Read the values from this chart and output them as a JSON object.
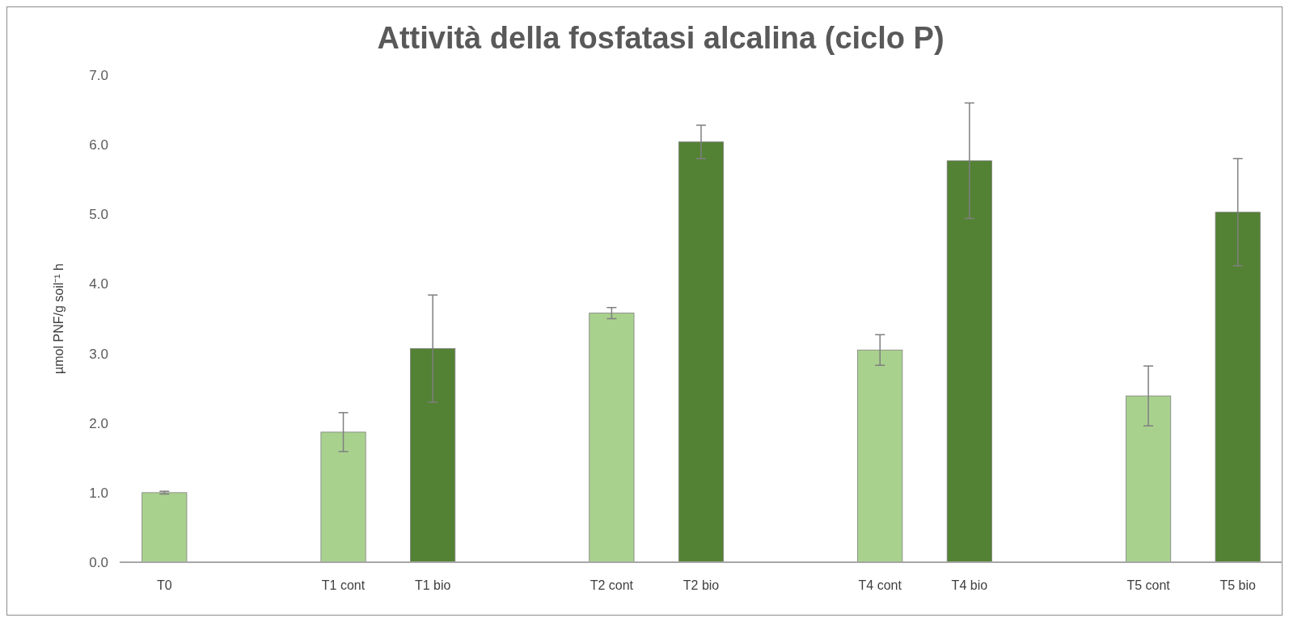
{
  "chart_data": {
    "type": "bar",
    "title": "Attività della fosfatasi alcalina (ciclo P)",
    "ylabel": "µmol PNF/g soil⁻¹ h",
    "categories": [
      "T0",
      null,
      "T1 cont",
      "T1 bio",
      null,
      "T2 cont",
      "T2 bio",
      null,
      "T4 cont",
      "T4 bio",
      null,
      "T5 cont",
      "T5 bio"
    ],
    "values": [
      1.0,
      null,
      1.87,
      3.07,
      null,
      3.58,
      6.04,
      null,
      3.05,
      5.77,
      null,
      2.39,
      5.03
    ],
    "errors": [
      0.02,
      null,
      0.28,
      0.77,
      null,
      0.08,
      0.24,
      null,
      0.22,
      0.83,
      null,
      0.43,
      0.77
    ],
    "colors": [
      "#a9d18e",
      null,
      "#a9d18e",
      "#548235",
      null,
      "#a9d18e",
      "#548235",
      null,
      "#a9d18e",
      "#548235",
      null,
      "#a9d18e",
      "#548235"
    ],
    "ylim": [
      0,
      7
    ],
    "yticks": [
      {
        "value": 0,
        "label": "0.0"
      },
      {
        "value": 1,
        "label": "1.0"
      },
      {
        "value": 2,
        "label": "2.0"
      },
      {
        "value": 3,
        "label": "3.0"
      },
      {
        "value": 4,
        "label": "4.0"
      },
      {
        "value": 5,
        "label": "5.0"
      },
      {
        "value": 6,
        "label": "6.0"
      },
      {
        "value": 7,
        "label": "7.0"
      }
    ],
    "grid": false
  }
}
